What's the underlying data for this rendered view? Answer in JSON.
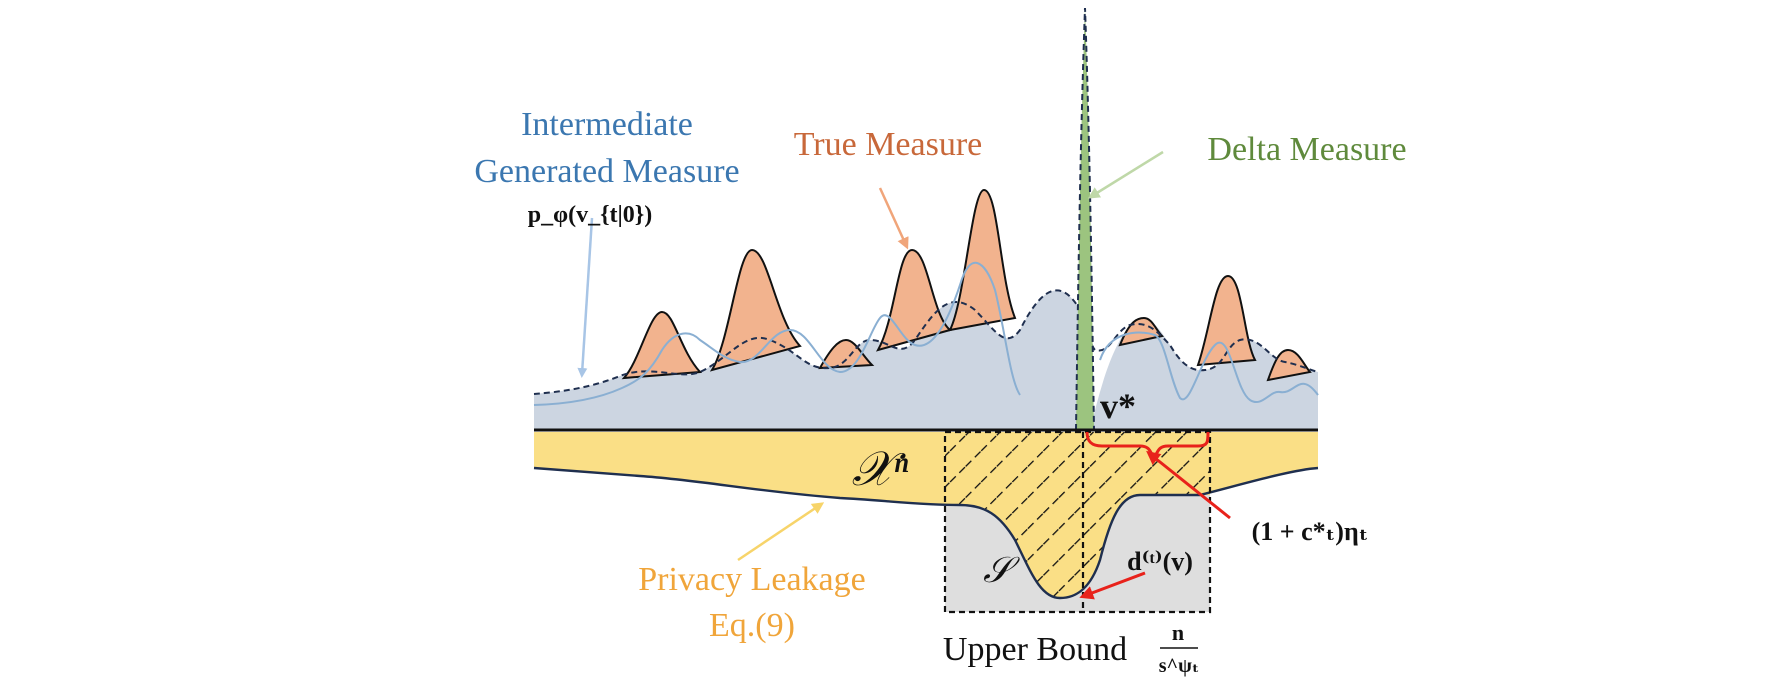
{
  "colors": {
    "true_measure": "#C8683A",
    "true_measure_fill": "#F2B38E",
    "generated_measure": "#3B77B0",
    "generated_fill": "#B9CDE2",
    "delta_measure": "#5F8A3C",
    "delta_fill": "#9CC47F",
    "privacy_leakage": "#F0A53A",
    "space_fill": "#FADF86",
    "set_fill": "#DEDEDE",
    "arrow_red": "#E8221B"
  },
  "labels": {
    "intermediate_line1": "Intermediate",
    "intermediate_line2": "Generated Measure",
    "generated_formula": "p_φ(v_{t|0})",
    "true_measure": "True Measure",
    "delta_measure": "Delta Measure",
    "v_star": "v*",
    "space": "𝒳ⁿ",
    "set": "𝒮",
    "privacy_line1": "Privacy Leakage",
    "privacy_line2": "Eq.(9)",
    "radius": "(1 + c*ₜ)ηₜ",
    "distance": "d⁽ᵗ⁾(v)",
    "upper_bound": "Upper Bound",
    "upper_bound_num": "n",
    "upper_bound_den": "s^ψₜ"
  },
  "icons": {
    "pointer_arrows": "arrow-icon",
    "brace": "curly-brace-icon"
  }
}
